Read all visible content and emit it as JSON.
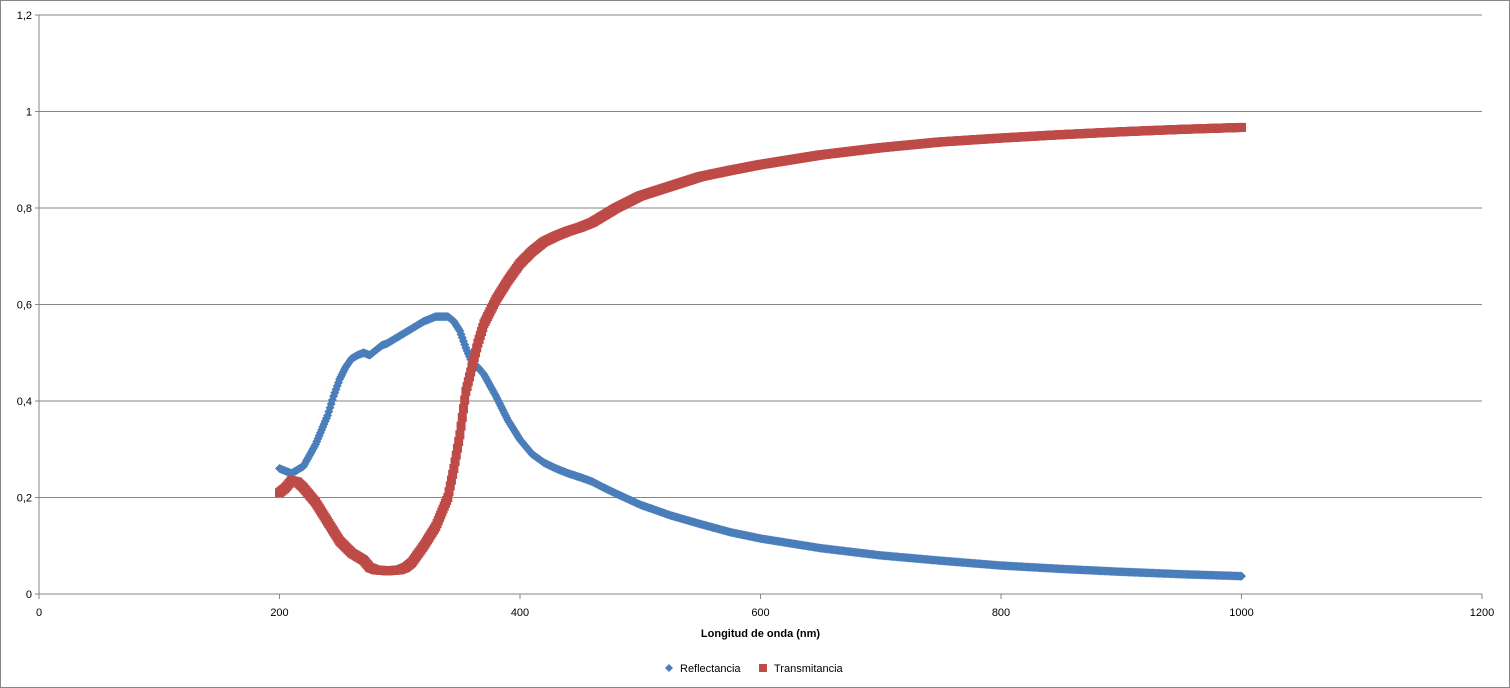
{
  "chart_data": {
    "type": "scatter",
    "title": "",
    "xlabel": "Longitud de onda (nm)",
    "ylabel": "",
    "xlim": [
      0,
      1200
    ],
    "ylim": [
      0,
      1.2
    ],
    "xticks": [
      0,
      200,
      400,
      600,
      800,
      1000,
      1200
    ],
    "yticks": [
      0,
      0.2,
      0.4,
      0.6,
      0.8,
      1,
      1.2
    ],
    "xtick_labels": [
      "0",
      "200",
      "400",
      "600",
      "800",
      "1000",
      "1200"
    ],
    "ytick_labels": [
      "0",
      "0,2",
      "0,4",
      "0,6",
      "0,8",
      "1",
      "1,2"
    ],
    "grid": "horizontal",
    "legend": "bottom",
    "series": [
      {
        "name": "Reflectancia",
        "color": "#4a7ebb",
        "marker": "diamond",
        "x": [
          200,
          210,
          220,
          230,
          240,
          245,
          250,
          255,
          260,
          265,
          270,
          275,
          280,
          285,
          290,
          300,
          310,
          320,
          330,
          340,
          345,
          350,
          355,
          360,
          365,
          370,
          380,
          390,
          400,
          410,
          420,
          430,
          440,
          450,
          460,
          470,
          480,
          500,
          525,
          550,
          575,
          600,
          650,
          700,
          750,
          800,
          850,
          900,
          950,
          1000
        ],
        "y": [
          0.26,
          0.25,
          0.265,
          0.31,
          0.37,
          0.41,
          0.445,
          0.47,
          0.488,
          0.495,
          0.5,
          0.495,
          0.505,
          0.515,
          0.52,
          0.535,
          0.55,
          0.565,
          0.575,
          0.575,
          0.565,
          0.545,
          0.51,
          0.48,
          0.47,
          0.455,
          0.41,
          0.36,
          0.32,
          0.29,
          0.272,
          0.26,
          0.25,
          0.242,
          0.233,
          0.22,
          0.208,
          0.185,
          0.163,
          0.145,
          0.128,
          0.115,
          0.095,
          0.08,
          0.069,
          0.059,
          0.052,
          0.046,
          0.041,
          0.037
        ]
      },
      {
        "name": "Transmitancia",
        "color": "#be4b48",
        "marker": "square",
        "x": [
          200,
          205,
          210,
          215,
          220,
          230,
          240,
          250,
          260,
          270,
          275,
          280,
          290,
          300,
          305,
          310,
          320,
          330,
          340,
          345,
          350,
          355,
          360,
          365,
          370,
          375,
          380,
          390,
          400,
          410,
          420,
          430,
          440,
          450,
          460,
          470,
          480,
          500,
          525,
          550,
          575,
          600,
          650,
          700,
          750,
          800,
          850,
          900,
          950,
          1000
        ],
        "y": [
          0.21,
          0.22,
          0.235,
          0.232,
          0.22,
          0.19,
          0.15,
          0.11,
          0.085,
          0.07,
          0.055,
          0.05,
          0.048,
          0.05,
          0.055,
          0.065,
          0.1,
          0.14,
          0.2,
          0.26,
          0.33,
          0.42,
          0.47,
          0.52,
          0.56,
          0.585,
          0.61,
          0.65,
          0.685,
          0.71,
          0.73,
          0.742,
          0.752,
          0.76,
          0.77,
          0.785,
          0.8,
          0.825,
          0.845,
          0.865,
          0.878,
          0.89,
          0.91,
          0.925,
          0.937,
          0.945,
          0.952,
          0.958,
          0.963,
          0.967
        ]
      }
    ]
  }
}
